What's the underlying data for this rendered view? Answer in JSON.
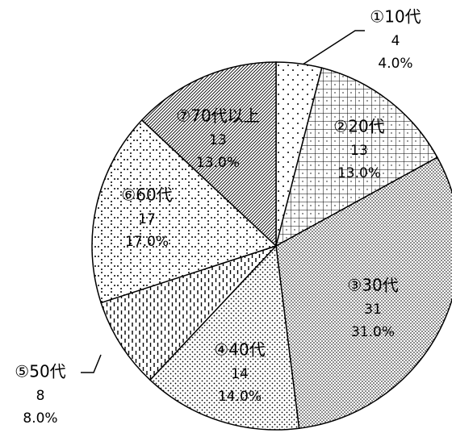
{
  "chart_data": {
    "type": "pie",
    "categories": [
      "①10代",
      "②20代",
      "③30代",
      "④40代",
      "⑤50代",
      "⑥60代",
      "⑦70代以上"
    ],
    "values": [
      4,
      13,
      31,
      14,
      8,
      17,
      13
    ],
    "value_labels": [
      "4.0%",
      "13.0%",
      "31.0%",
      "14.0%",
      "8.0%",
      "17.0%",
      "13.0%"
    ]
  }
}
